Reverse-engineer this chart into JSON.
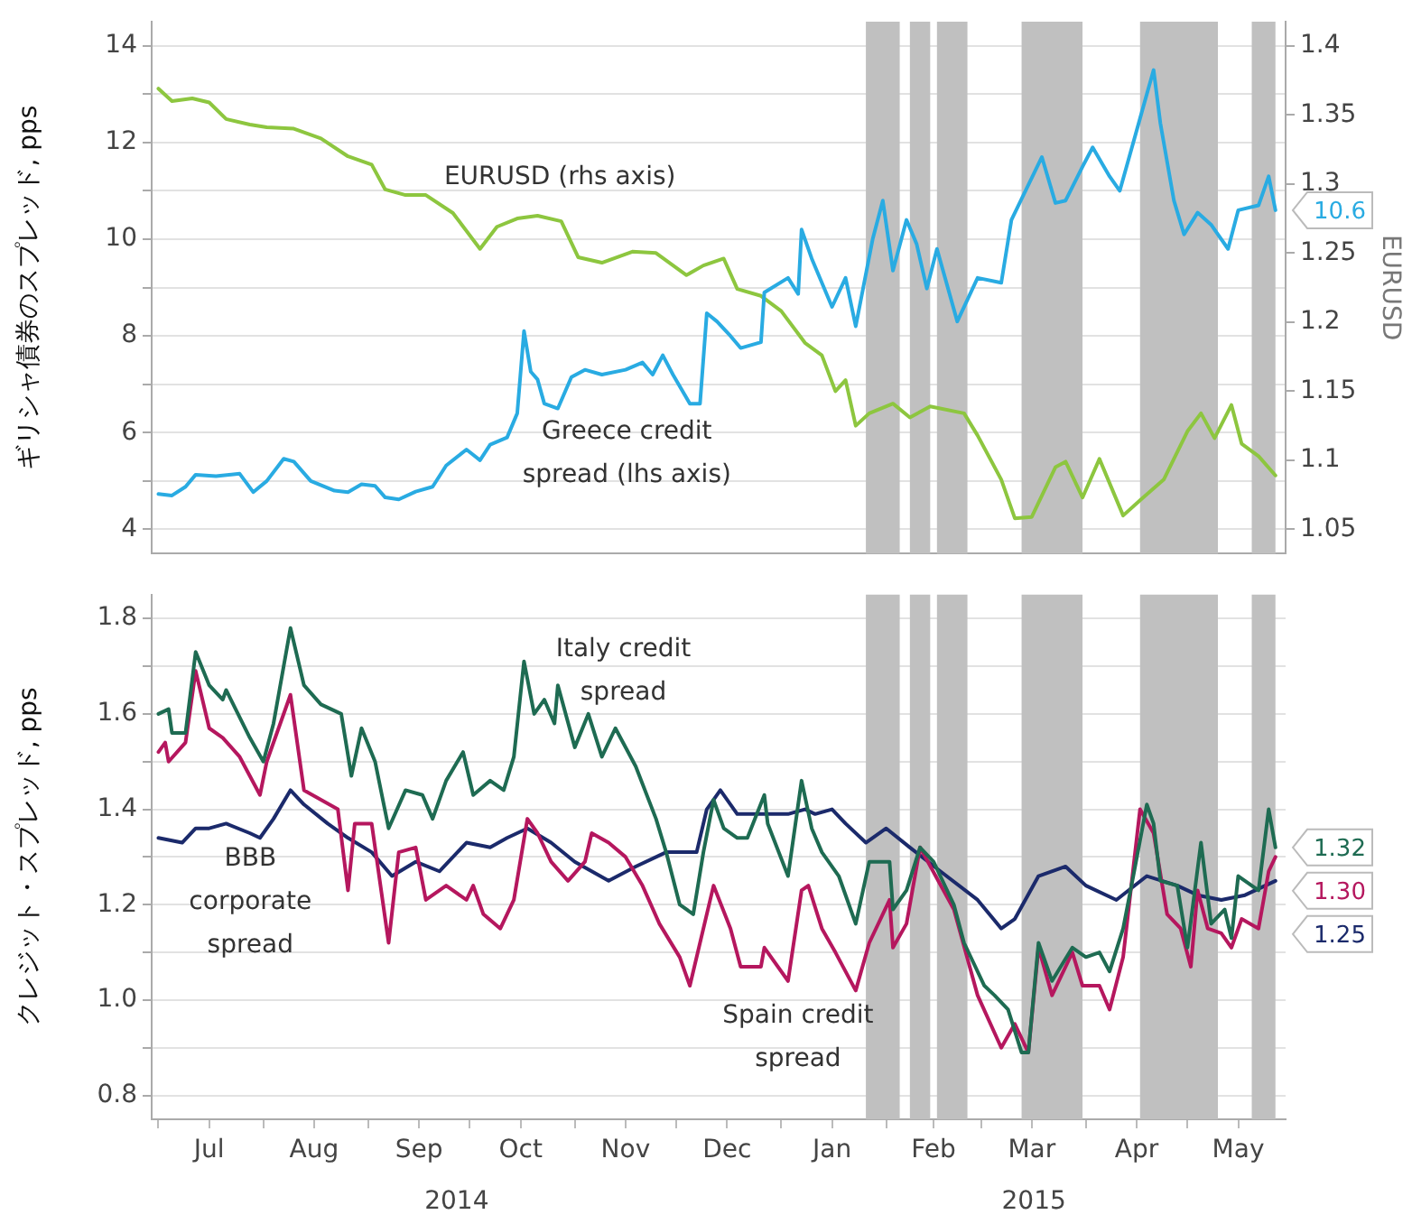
{
  "chart_data": [
    {
      "type": "line",
      "ylabel": "ギリシャ債券のスプレッド, pps",
      "y2label": "EURUSD",
      "xlim": [
        "2014-06-29",
        "2015-05-30"
      ],
      "ylim": [
        3.5,
        14.5
      ],
      "yticks": [
        4,
        {
          "value": 5,
          "label": null
        },
        6,
        {
          "value": 7,
          "label": null
        },
        8,
        {
          "value": 9,
          "label": null
        },
        10,
        {
          "value": 11,
          "label": null
        },
        12,
        {
          "value": 13,
          "label": null
        },
        14
      ],
      "y2lim": [
        1.0325,
        1.4175
      ],
      "y2ticks": [
        1.05,
        1.1,
        1.15,
        1.2,
        1.25,
        1.3,
        1.35,
        1.4
      ],
      "tick_labels": "y",
      "grid": "y",
      "bands": [
        {
          "axis": "x",
          "from": "2015-01-26",
          "to": "2015-02-05",
          "color": "#c0c0c0"
        },
        {
          "axis": "x",
          "from": "2015-02-08",
          "to": "2015-02-14",
          "color": "#c0c0c0"
        },
        {
          "axis": "x",
          "from": "2015-02-16",
          "to": "2015-02-25",
          "color": "#c0c0c0"
        },
        {
          "axis": "x",
          "from": "2015-03-13",
          "to": "2015-03-31",
          "color": "#c0c0c0"
        },
        {
          "axis": "x",
          "from": "2015-04-17",
          "to": "2015-05-10",
          "color": "#c0c0c0"
        },
        {
          "axis": "x",
          "from": "2015-05-20",
          "to": "2015-05-27",
          "color": "#c0c0c0"
        }
      ],
      "annotations": [
        "EURUSD (rhs axis)",
        "Greece credit\nspread (lhs axis)"
      ],
      "series": [
        {
          "color": "#29abe2",
          "x": [
            "2014-07-01",
            "2014-07-05",
            "2014-07-09",
            "2014-07-12",
            "2014-07-18",
            "2014-07-25",
            "2014-07-29",
            "2014-08-02",
            "2014-08-07",
            "2014-08-10",
            "2014-08-15",
            "2014-08-22",
            "2014-08-26",
            "2014-08-30",
            "2014-09-03",
            "2014-09-06",
            "2014-09-10",
            "2014-09-15",
            "2014-09-20",
            "2014-09-24",
            "2014-09-30",
            "2014-10-04",
            "2014-10-07",
            "2014-10-12",
            "2014-10-15",
            "2014-10-17",
            "2014-10-19",
            "2014-10-21",
            "2014-10-23",
            "2014-10-27",
            "2014-10-31",
            "2014-11-04",
            "2014-11-09",
            "2014-11-16",
            "2014-11-21",
            "2014-11-24",
            "2014-11-27",
            "2014-11-30",
            "2014-12-05",
            "2014-12-08",
            "2014-12-10",
            "2014-12-13",
            "2014-12-17",
            "2014-12-20",
            "2014-12-26",
            "2014-12-27",
            "2015-01-03",
            "2015-01-06",
            "2015-01-07",
            "2015-01-10",
            "2015-01-16",
            "2015-01-20",
            "2015-01-23",
            "2015-01-28",
            "2015-01-31",
            "2015-02-03",
            "2015-02-07",
            "2015-02-10",
            "2015-02-13",
            "2015-02-16",
            "2015-02-22",
            "2015-02-28",
            "2015-03-07",
            "2015-03-10",
            "2015-03-19",
            "2015-03-23",
            "2015-03-26",
            "2015-03-31",
            "2015-04-03",
            "2015-04-08",
            "2015-04-11",
            "2015-04-17",
            "2015-04-21",
            "2015-04-23",
            "2015-04-27",
            "2015-04-30",
            "2015-05-04",
            "2015-05-08",
            "2015-05-13",
            "2015-05-16",
            "2015-05-22",
            "2015-05-25",
            "2015-05-27"
          ],
          "values": [
            4.73,
            4.7,
            4.88,
            5.13,
            5.1,
            5.15,
            4.77,
            5.0,
            5.46,
            5.4,
            5.0,
            4.8,
            4.77,
            4.93,
            4.9,
            4.66,
            4.62,
            4.78,
            4.88,
            5.32,
            5.65,
            5.43,
            5.75,
            5.9,
            6.4,
            8.1,
            7.26,
            7.1,
            6.6,
            6.5,
            7.15,
            7.3,
            7.2,
            7.3,
            7.45,
            7.2,
            7.6,
            7.2,
            6.6,
            6.6,
            8.47,
            8.3,
            8.0,
            7.75,
            7.87,
            8.9,
            9.2,
            8.87,
            10.2,
            9.6,
            8.6,
            9.2,
            8.2,
            10.0,
            10.8,
            9.35,
            10.4,
            9.9,
            8.98,
            9.8,
            8.3,
            9.2,
            9.1,
            10.4,
            11.7,
            10.75,
            10.8,
            11.5,
            11.9,
            11.3,
            11.0,
            12.5,
            13.5,
            12.4,
            10.8,
            10.1,
            10.55,
            10.3,
            9.8,
            10.6,
            10.7,
            11.3,
            10.6
          ],
          "value_labels": [
            null,
            null,
            null,
            null,
            null,
            null,
            null,
            null,
            null,
            null,
            null,
            null,
            null,
            null,
            null,
            null,
            null,
            null,
            null,
            null,
            null,
            null,
            null,
            null,
            null,
            null,
            null,
            null,
            null,
            null,
            null,
            null,
            null,
            null,
            null,
            null,
            null,
            null,
            null,
            null,
            null,
            null,
            null,
            null,
            null,
            null,
            null,
            null,
            null,
            null,
            null,
            null,
            null,
            null,
            null,
            null,
            null,
            null,
            null,
            null,
            null,
            null,
            null,
            null,
            null,
            null,
            null,
            null,
            null,
            null,
            null,
            null,
            null,
            null,
            null,
            null,
            null,
            null,
            null,
            null,
            null,
            null,
            "10.6"
          ]
        },
        {
          "color": "#8dc63f",
          "axis": "y2",
          "x": [
            "2014-07-01",
            "2014-07-05",
            "2014-07-11",
            "2014-07-16",
            "2014-07-21",
            "2014-07-28",
            "2014-08-02",
            "2014-08-10",
            "2014-08-18",
            "2014-08-26",
            "2014-09-02",
            "2014-09-06",
            "2014-09-12",
            "2014-09-18",
            "2014-09-26",
            "2014-10-04",
            "2014-10-09",
            "2014-10-15",
            "2014-10-21",
            "2014-10-28",
            "2014-11-02",
            "2014-11-09",
            "2014-11-18",
            "2014-11-25",
            "2014-12-04",
            "2014-12-09",
            "2014-12-15",
            "2014-12-19",
            "2014-12-26",
            "2015-01-01",
            "2015-01-08",
            "2015-01-13",
            "2015-01-17",
            "2015-01-20",
            "2015-01-23",
            "2015-01-27",
            "2015-02-03",
            "2015-02-08",
            "2015-02-14",
            "2015-02-24",
            "2015-02-28",
            "2015-03-07",
            "2015-03-11",
            "2015-03-16",
            "2015-03-23",
            "2015-03-26",
            "2015-03-31",
            "2015-04-05",
            "2015-04-12",
            "2015-04-17",
            "2015-04-24",
            "2015-05-01",
            "2015-05-05",
            "2015-05-09",
            "2015-05-14",
            "2015-05-17",
            "2015-05-22",
            "2015-05-27"
          ],
          "values": [
            1.369,
            1.36,
            1.362,
            1.359,
            1.347,
            1.343,
            1.341,
            1.34,
            1.333,
            1.32,
            1.314,
            1.296,
            1.292,
            1.292,
            1.279,
            1.253,
            1.269,
            1.275,
            1.277,
            1.273,
            1.247,
            1.243,
            1.251,
            1.25,
            1.234,
            1.241,
            1.246,
            1.224,
            1.219,
            1.208,
            1.185,
            1.176,
            1.15,
            1.158,
            1.125,
            1.134,
            1.141,
            1.131,
            1.139,
            1.134,
            1.118,
            1.086,
            1.058,
            1.059,
            1.095,
            1.099,
            1.073,
            1.101,
            1.06,
            1.071,
            1.086,
            1.121,
            1.134,
            1.116,
            1.14,
            1.112,
            1.103,
            1.089
          ]
        }
      ]
    },
    {
      "type": "line",
      "ylabel": "クレジット・スプレッド, pps",
      "xlim": [
        "2014-06-29",
        "2015-05-30"
      ],
      "xticks": [
        {
          "value": "2014-07-01",
          "label": null
        },
        {
          "value": "2014-07-16",
          "label": "Jul"
        },
        {
          "value": "2014-08-01",
          "label": null
        },
        {
          "value": "2014-08-16",
          "label": "Aug"
        },
        {
          "value": "2014-09-01",
          "label": null
        },
        {
          "value": "2014-09-16",
          "label": "Sep"
        },
        {
          "value": "2014-10-01",
          "label": null
        },
        {
          "value": "2014-10-16",
          "label": "Oct"
        },
        {
          "value": "2014-11-01",
          "label": null
        },
        {
          "value": "2014-11-16",
          "label": "Nov"
        },
        {
          "value": "2014-12-01",
          "label": null
        },
        {
          "value": "2014-12-16",
          "label": "Dec"
        },
        {
          "value": "2015-01-01",
          "label": null
        },
        {
          "value": "2015-01-16",
          "label": "Jan"
        },
        {
          "value": "2015-02-01",
          "label": null
        },
        {
          "value": "2015-02-15",
          "label": "Feb"
        },
        {
          "value": "2015-03-01",
          "label": null
        },
        {
          "value": "2015-03-16",
          "label": "Mar"
        },
        {
          "value": "2015-04-01",
          "label": null
        },
        {
          "value": "2015-04-16",
          "label": "Apr"
        },
        {
          "value": "2015-05-01",
          "label": null
        },
        {
          "value": "2015-05-16",
          "label": "May"
        }
      ],
      "ylim": [
        0.75,
        1.85
      ],
      "yticks": [
        {
          "value": 0.8,
          "label": "0.8"
        },
        {
          "value": 0.9,
          "label": null
        },
        {
          "value": 1.0,
          "label": "1.0"
        },
        {
          "value": 1.1,
          "label": null
        },
        {
          "value": 1.2,
          "label": "1.2"
        },
        {
          "value": 1.3,
          "label": null
        },
        {
          "value": 1.4,
          "label": "1.4"
        },
        {
          "value": 1.5,
          "label": null
        },
        {
          "value": 1.6,
          "label": "1.6"
        },
        {
          "value": 1.7,
          "label": null
        },
        {
          "value": 1.8,
          "label": "1.8"
        }
      ],
      "grid": "y",
      "bands": [
        {
          "axis": "x",
          "from": "2015-01-26",
          "to": "2015-02-05",
          "color": "#c0c0c0"
        },
        {
          "axis": "x",
          "from": "2015-02-08",
          "to": "2015-02-14",
          "color": "#c0c0c0"
        },
        {
          "axis": "x",
          "from": "2015-02-16",
          "to": "2015-02-25",
          "color": "#c0c0c0"
        },
        {
          "axis": "x",
          "from": "2015-03-13",
          "to": "2015-03-31",
          "color": "#c0c0c0"
        },
        {
          "axis": "x",
          "from": "2015-04-17",
          "to": "2015-05-10",
          "color": "#c0c0c0"
        },
        {
          "axis": "x",
          "from": "2015-05-20",
          "to": "2015-05-27",
          "color": "#c0c0c0"
        }
      ],
      "annotations": [
        "Italy credit\nspread",
        "BBB\ncorporate\nspread",
        "Spain credit\nspread",
        "2014",
        "2015"
      ],
      "series": [
        {
          "color": "#1e6b52",
          "x": [
            "2014-07-01",
            "2014-07-04",
            "2014-07-05",
            "2014-07-09",
            "2014-07-12",
            "2014-07-16",
            "2014-07-20",
            "2014-07-21",
            "2014-07-28",
            "2014-08-01",
            "2014-08-04",
            "2014-08-09",
            "2014-08-13",
            "2014-08-18",
            "2014-08-24",
            "2014-08-27",
            "2014-08-30",
            "2014-09-03",
            "2014-09-07",
            "2014-09-12",
            "2014-09-17",
            "2014-09-20",
            "2014-09-24",
            "2014-09-29",
            "2014-10-02",
            "2014-10-07",
            "2014-10-11",
            "2014-10-14",
            "2014-10-17",
            "2014-10-20",
            "2014-10-23",
            "2014-10-26",
            "2014-10-27",
            "2014-11-01",
            "2014-11-05",
            "2014-11-09",
            "2014-11-13",
            "2014-11-19",
            "2014-11-25",
            "2014-11-28",
            "2014-12-02",
            "2014-12-06",
            "2014-12-09",
            "2014-12-12",
            "2014-12-15",
            "2014-12-19",
            "2014-12-22",
            "2014-12-27",
            "2014-12-28",
            "2015-01-03",
            "2015-01-07",
            "2015-01-10",
            "2015-01-13",
            "2015-01-18",
            "2015-01-23",
            "2015-01-27",
            "2015-02-02",
            "2015-02-03",
            "2015-02-07",
            "2015-02-11",
            "2015-02-15",
            "2015-02-21",
            "2015-02-24",
            "2015-03-02",
            "2015-03-05",
            "2015-03-09",
            "2015-03-13",
            "2015-03-15",
            "2015-03-18",
            "2015-03-22",
            "2015-03-28",
            "2015-04-01",
            "2015-04-05",
            "2015-04-08",
            "2015-04-12",
            "2015-04-15",
            "2015-04-19",
            "2015-04-21",
            "2015-04-23",
            "2015-04-28",
            "2015-05-01",
            "2015-05-05",
            "2015-05-08",
            "2015-05-12",
            "2015-05-14",
            "2015-05-16",
            "2015-05-22",
            "2015-05-25",
            "2015-05-27"
          ],
          "values": [
            1.6,
            1.61,
            1.56,
            1.56,
            1.73,
            1.66,
            1.63,
            1.65,
            1.55,
            1.5,
            1.58,
            1.78,
            1.66,
            1.62,
            1.6,
            1.47,
            1.57,
            1.5,
            1.36,
            1.44,
            1.43,
            1.38,
            1.46,
            1.52,
            1.43,
            1.46,
            1.44,
            1.51,
            1.71,
            1.6,
            1.63,
            1.58,
            1.66,
            1.53,
            1.6,
            1.51,
            1.57,
            1.49,
            1.38,
            1.31,
            1.2,
            1.18,
            1.31,
            1.42,
            1.36,
            1.34,
            1.34,
            1.43,
            1.37,
            1.26,
            1.46,
            1.36,
            1.31,
            1.26,
            1.16,
            1.29,
            1.29,
            1.19,
            1.23,
            1.32,
            1.29,
            1.2,
            1.12,
            1.03,
            1.01,
            0.98,
            0.89,
            0.89,
            1.12,
            1.04,
            1.11,
            1.09,
            1.1,
            1.06,
            1.15,
            1.26,
            1.41,
            1.37,
            1.25,
            1.24,
            1.11,
            1.33,
            1.16,
            1.19,
            1.13,
            1.26,
            1.23,
            1.4,
            1.32
          ],
          "value_labels": [
            null,
            null,
            null,
            null,
            null,
            null,
            null,
            null,
            null,
            null,
            null,
            null,
            null,
            null,
            null,
            null,
            null,
            null,
            null,
            null,
            null,
            null,
            null,
            null,
            null,
            null,
            null,
            null,
            null,
            null,
            null,
            null,
            null,
            null,
            null,
            null,
            null,
            null,
            null,
            null,
            null,
            null,
            null,
            null,
            null,
            null,
            null,
            null,
            null,
            null,
            null,
            null,
            null,
            null,
            null,
            null,
            null,
            null,
            null,
            null,
            null,
            null,
            null,
            null,
            null,
            null,
            null,
            null,
            null,
            null,
            null,
            null,
            null,
            null,
            null,
            null,
            null,
            null,
            null,
            null,
            null,
            null,
            null,
            null,
            null,
            null,
            null,
            null,
            "1.32"
          ]
        },
        {
          "color": "#b5175e",
          "x": [
            "2014-07-01",
            "2014-07-03",
            "2014-07-04",
            "2014-07-09",
            "2014-07-12",
            "2014-07-16",
            "2014-07-20",
            "2014-07-25",
            "2014-07-31",
            "2014-08-02",
            "2014-08-09",
            "2014-08-13",
            "2014-08-18",
            "2014-08-23",
            "2014-08-26",
            "2014-08-28",
            "2014-09-02",
            "2014-09-07",
            "2014-09-10",
            "2014-09-15",
            "2014-09-18",
            "2014-09-24",
            "2014-09-30",
            "2014-10-02",
            "2014-10-05",
            "2014-10-10",
            "2014-10-14",
            "2014-10-18",
            "2014-10-21",
            "2014-10-25",
            "2014-10-30",
            "2014-11-04",
            "2014-11-06",
            "2014-11-11",
            "2014-11-16",
            "2014-11-21",
            "2014-11-26",
            "2014-12-02",
            "2014-12-05",
            "2014-12-12",
            "2014-12-17",
            "2014-12-20",
            "2014-12-26",
            "2014-12-27",
            "2015-01-03",
            "2015-01-07",
            "2015-01-09",
            "2015-01-13",
            "2015-01-17",
            "2015-01-23",
            "2015-01-27",
            "2015-02-02",
            "2015-02-03",
            "2015-02-07",
            "2015-02-11",
            "2015-02-21",
            "2015-02-28",
            "2015-03-07",
            "2015-03-11",
            "2015-03-15",
            "2015-03-18",
            "2015-03-22",
            "2015-03-28",
            "2015-03-31",
            "2015-04-05",
            "2015-04-08",
            "2015-04-12",
            "2015-04-17",
            "2015-04-21",
            "2015-04-25",
            "2015-04-29",
            "2015-05-02",
            "2015-05-04",
            "2015-05-07",
            "2015-05-11",
            "2015-05-14",
            "2015-05-17",
            "2015-05-22",
            "2015-05-25",
            "2015-05-27"
          ],
          "values": [
            1.52,
            1.54,
            1.5,
            1.54,
            1.69,
            1.57,
            1.55,
            1.51,
            1.43,
            1.5,
            1.64,
            1.44,
            1.42,
            1.4,
            1.23,
            1.37,
            1.37,
            1.12,
            1.31,
            1.32,
            1.21,
            1.24,
            1.21,
            1.24,
            1.18,
            1.15,
            1.21,
            1.38,
            1.35,
            1.29,
            1.25,
            1.29,
            1.35,
            1.33,
            1.3,
            1.24,
            1.16,
            1.09,
            1.03,
            1.24,
            1.15,
            1.07,
            1.07,
            1.11,
            1.04,
            1.23,
            1.24,
            1.15,
            1.1,
            1.02,
            1.12,
            1.21,
            1.11,
            1.16,
            1.32,
            1.19,
            1.01,
            0.9,
            0.95,
            0.89,
            1.11,
            1.01,
            1.1,
            1.03,
            1.03,
            0.98,
            1.09,
            1.4,
            1.35,
            1.18,
            1.15,
            1.07,
            1.23,
            1.15,
            1.14,
            1.11,
            1.17,
            1.15,
            1.27,
            1.3
          ],
          "value_labels": [
            null,
            null,
            null,
            null,
            null,
            null,
            null,
            null,
            null,
            null,
            null,
            null,
            null,
            null,
            null,
            null,
            null,
            null,
            null,
            null,
            null,
            null,
            null,
            null,
            null,
            null,
            null,
            null,
            null,
            null,
            null,
            null,
            null,
            null,
            null,
            null,
            null,
            null,
            null,
            null,
            null,
            null,
            null,
            null,
            null,
            null,
            null,
            null,
            null,
            null,
            null,
            null,
            null,
            null,
            null,
            null,
            null,
            null,
            null,
            null,
            null,
            null,
            null,
            null,
            null,
            null,
            null,
            null,
            null,
            null,
            null,
            null,
            null,
            null,
            null,
            null,
            null,
            null,
            null,
            "1.30"
          ]
        },
        {
          "color": "#1b2a6b",
          "x": [
            "2014-07-01",
            "2014-07-08",
            "2014-07-12",
            "2014-07-16",
            "2014-07-21",
            "2014-07-28",
            "2014-07-31",
            "2014-08-04",
            "2014-08-09",
            "2014-08-13",
            "2014-08-20",
            "2014-08-26",
            "2014-09-02",
            "2014-09-08",
            "2014-09-15",
            "2014-09-22",
            "2014-09-30",
            "2014-10-07",
            "2014-10-12",
            "2014-10-18",
            "2014-10-25",
            "2014-11-01",
            "2014-11-11",
            "2014-11-19",
            "2014-11-28",
            "2014-12-07",
            "2014-12-10",
            "2014-12-14",
            "2014-12-19",
            "2014-12-26",
            "2015-01-03",
            "2015-01-08",
            "2015-01-11",
            "2015-01-16",
            "2015-01-20",
            "2015-01-26",
            "2015-02-01",
            "2015-02-08",
            "2015-02-17",
            "2015-02-28",
            "2015-03-07",
            "2015-03-11",
            "2015-03-18",
            "2015-03-26",
            "2015-04-01",
            "2015-04-10",
            "2015-04-19",
            "2015-04-28",
            "2015-05-04",
            "2015-05-11",
            "2015-05-18",
            "2015-05-27"
          ],
          "values": [
            1.34,
            1.33,
            1.36,
            1.36,
            1.37,
            1.35,
            1.34,
            1.38,
            1.44,
            1.41,
            1.37,
            1.34,
            1.31,
            1.26,
            1.29,
            1.27,
            1.33,
            1.32,
            1.34,
            1.36,
            1.33,
            1.29,
            1.25,
            1.28,
            1.31,
            1.31,
            1.4,
            1.44,
            1.39,
            1.39,
            1.39,
            1.4,
            1.39,
            1.4,
            1.37,
            1.33,
            1.36,
            1.32,
            1.27,
            1.21,
            1.15,
            1.17,
            1.26,
            1.28,
            1.24,
            1.21,
            1.26,
            1.24,
            1.22,
            1.21,
            1.22,
            1.25
          ],
          "value_labels": [
            null,
            null,
            null,
            null,
            null,
            null,
            null,
            null,
            null,
            null,
            null,
            null,
            null,
            null,
            null,
            null,
            null,
            null,
            null,
            null,
            null,
            null,
            null,
            null,
            null,
            null,
            null,
            null,
            null,
            null,
            null,
            null,
            null,
            null,
            null,
            null,
            null,
            null,
            null,
            null,
            null,
            null,
            null,
            null,
            null,
            null,
            null,
            null,
            null,
            null,
            null,
            "1.25"
          ]
        }
      ]
    }
  ]
}
